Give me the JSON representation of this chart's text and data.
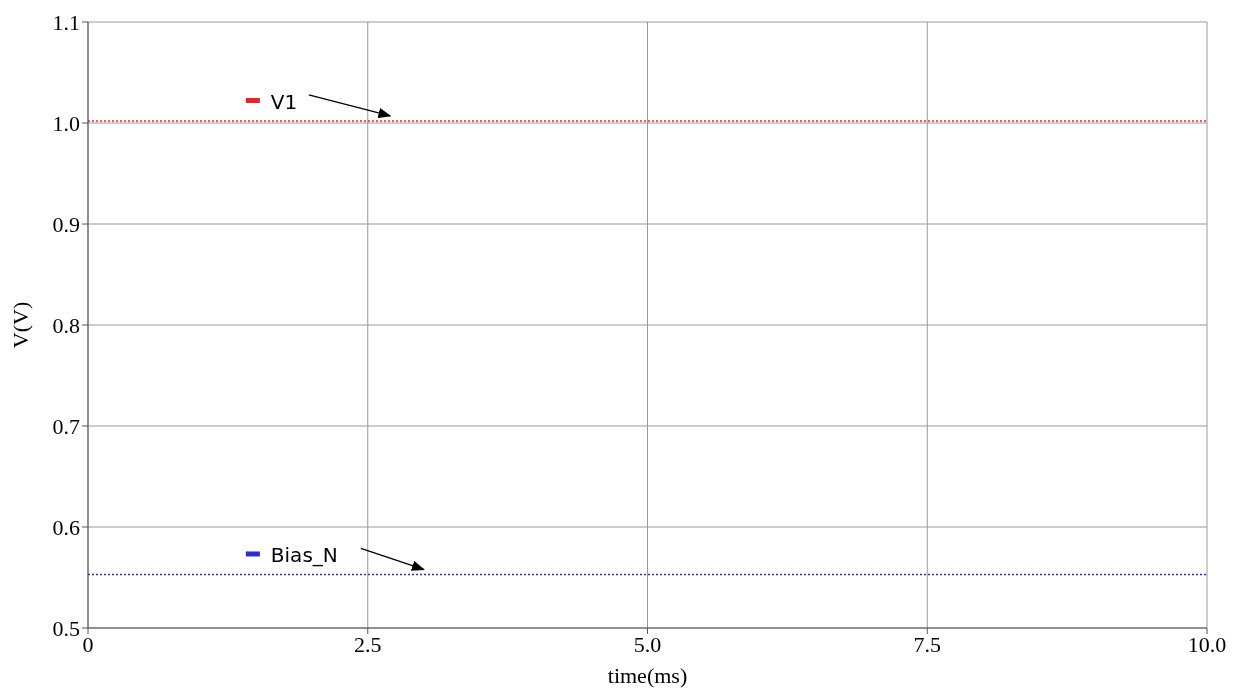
{
  "chart_data": {
    "type": "line",
    "xlabel": "time(ms)",
    "ylabel": "V(V)",
    "x": [
      0,
      10
    ],
    "series": [
      {
        "name": "V1",
        "color": "#e8232a",
        "values": [
          1.002,
          1.002
        ]
      },
      {
        "name": "Bias_N",
        "color": "#2a2ae0",
        "values": [
          0.553,
          0.553
        ]
      }
    ],
    "xlim": [
      0,
      10
    ],
    "xticks": [
      {
        "value": 0,
        "label": "0"
      },
      2.5,
      {
        "value": 5,
        "label": "5.0"
      },
      7.5,
      {
        "value": 10,
        "label": "10.0"
      }
    ],
    "ylim": [
      0.5,
      1.1
    ],
    "yticks": [
      0.5,
      0.6,
      0.7,
      0.8,
      0.9,
      {
        "value": 1,
        "label": "1.0"
      },
      1.1
    ],
    "grid": true,
    "legend": "left",
    "marker": "none",
    "line_style": "dotted"
  }
}
